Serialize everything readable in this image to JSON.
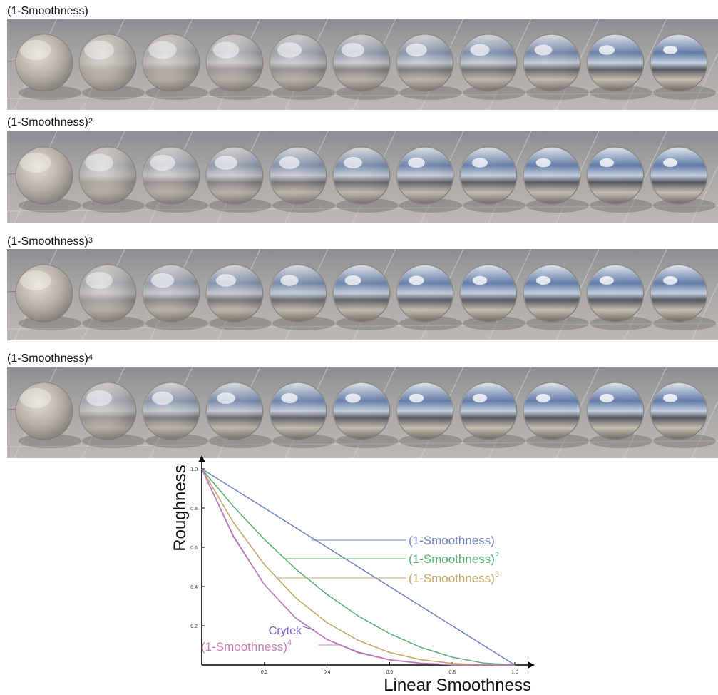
{
  "rows": [
    {
      "label": "(1-Smoothness)",
      "power": "",
      "exponent": 1
    },
    {
      "label": "(1-Smoothness)",
      "power": "2",
      "exponent": 2
    },
    {
      "label": "(1-Smoothness)",
      "power": "3",
      "exponent": 3
    },
    {
      "label": "(1-Smoothness)",
      "power": "4",
      "exponent": 4
    }
  ],
  "spheres_per_row": 11,
  "chart_data": {
    "type": "line",
    "xlabel": "Linear Smoothness",
    "ylabel": "Roughness",
    "xlim": [
      0,
      1
    ],
    "ylim": [
      0,
      1
    ],
    "x_ticks": [
      "0.2",
      "0.4",
      "0.6",
      "0.8",
      "1.0"
    ],
    "y_ticks": [
      "0.2",
      "0.4",
      "0.6",
      "0.8",
      "1.0"
    ],
    "grid": false,
    "series": [
      {
        "name": "(1-Smoothness)",
        "power": "",
        "exponent": 1,
        "color": "#6d83c4",
        "x": [
          0,
          0.1,
          0.2,
          0.3,
          0.4,
          0.5,
          0.6,
          0.7,
          0.8,
          0.9,
          1.0
        ],
        "y": [
          1.0,
          0.9,
          0.8,
          0.7,
          0.6,
          0.5,
          0.4,
          0.3,
          0.2,
          0.1,
          0.0
        ]
      },
      {
        "name": "(1-Smoothness)",
        "power": "2",
        "exponent": 2,
        "color": "#56b071",
        "x": [
          0,
          0.1,
          0.2,
          0.3,
          0.4,
          0.5,
          0.6,
          0.7,
          0.8,
          0.9,
          1.0
        ],
        "y": [
          1.0,
          0.81,
          0.64,
          0.49,
          0.36,
          0.25,
          0.16,
          0.09,
          0.04,
          0.01,
          0.0
        ]
      },
      {
        "name": "(1-Smoothness)",
        "power": "3",
        "exponent": 3,
        "color": "#c2a466",
        "x": [
          0,
          0.1,
          0.2,
          0.3,
          0.4,
          0.5,
          0.6,
          0.7,
          0.8,
          0.9,
          1.0
        ],
        "y": [
          1.0,
          0.729,
          0.512,
          0.343,
          0.216,
          0.125,
          0.064,
          0.027,
          0.008,
          0.001,
          0.0
        ]
      },
      {
        "name": "Crytek",
        "power": "",
        "exponent": 4,
        "color": "#7a5cc0",
        "x": [
          0,
          0.1,
          0.2,
          0.3,
          0.4,
          0.5,
          0.6,
          0.7,
          0.8,
          0.9,
          1.0
        ],
        "y": [
          1.0,
          0.66,
          0.41,
          0.24,
          0.13,
          0.065,
          0.027,
          0.009,
          0.002,
          0.0,
          0.0
        ]
      },
      {
        "name": "(1-Smoothness)",
        "power": "4",
        "exponent": 4,
        "color": "#c97bb7",
        "x": [
          0,
          0.1,
          0.2,
          0.3,
          0.4,
          0.5,
          0.6,
          0.7,
          0.8,
          0.9,
          1.0
        ],
        "y": [
          1.0,
          0.656,
          0.41,
          0.24,
          0.13,
          0.0625,
          0.026,
          0.008,
          0.0016,
          0.0001,
          0.0
        ]
      }
    ]
  }
}
